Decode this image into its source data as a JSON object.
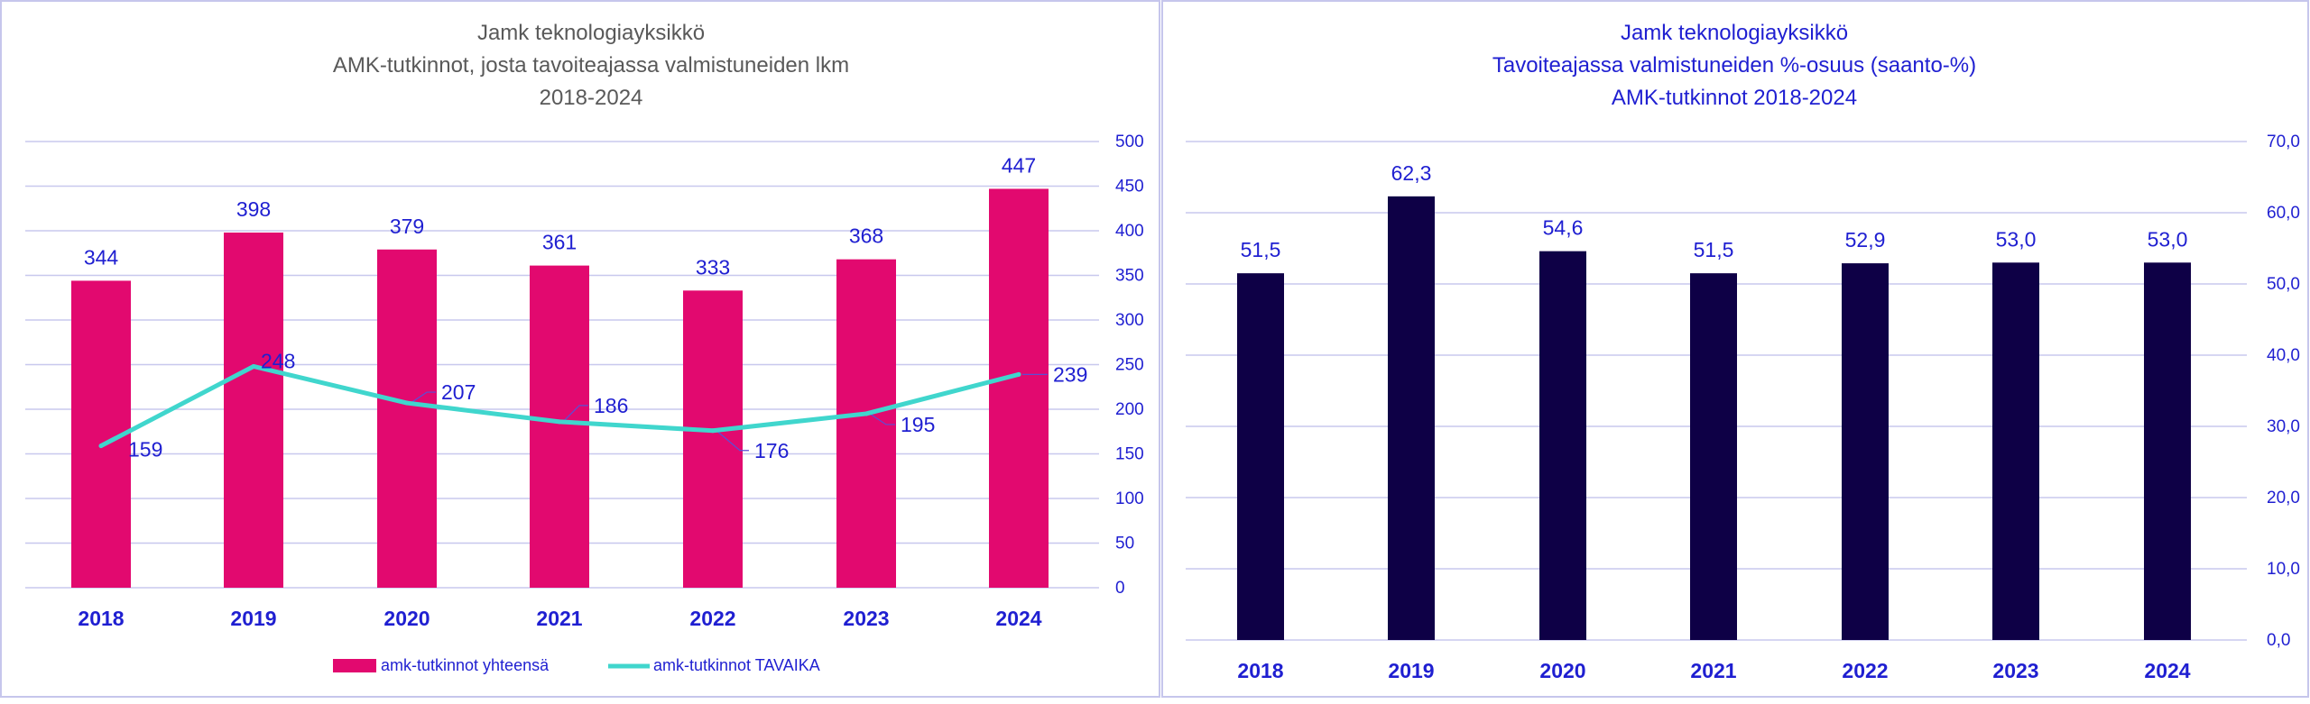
{
  "colors": {
    "panel_border": "#c6c6ec",
    "grid": "#c8c8ee",
    "left_title": "#595959",
    "right_title": "#1f1fd1",
    "axis_text": "#1f1fd1",
    "bar_magenta": "#e2096f",
    "line_teal": "#40d6cd",
    "bar_navy": "#0e0046",
    "leader": "#5a4fd6"
  },
  "chart_data": [
    {
      "type": "bar+line",
      "title_lines": [
        "Jamk teknologiayksikkö",
        "AMK-tutkinnot, josta tavoiteajassa valmistuneiden lkm",
        "2018-2024"
      ],
      "categories": [
        "2018",
        "2019",
        "2020",
        "2021",
        "2022",
        "2023",
        "2024"
      ],
      "series": [
        {
          "name": "amk-tutkinnot yhteensä",
          "kind": "bar",
          "values": [
            344,
            398,
            379,
            361,
            333,
            368,
            447
          ],
          "labels": [
            "344",
            "398",
            "379",
            "361",
            "333",
            "368",
            "447"
          ]
        },
        {
          "name": "amk-tutkinnot TAVAIKA",
          "kind": "line",
          "values": [
            159,
            248,
            207,
            186,
            176,
            195,
            239
          ],
          "labels": [
            "159",
            "248",
            "207",
            "186",
            "176",
            "195",
            "239"
          ]
        }
      ],
      "ylim": [
        0,
        500
      ],
      "yticks": [
        0,
        50,
        100,
        150,
        200,
        250,
        300,
        350,
        400,
        450,
        500
      ],
      "ytick_labels": [
        "0",
        "50",
        "100",
        "150",
        "200",
        "250",
        "300",
        "350",
        "400",
        "450",
        "500"
      ],
      "y_axis_side": "right",
      "grid": true,
      "legend_position": "bottom-center"
    },
    {
      "type": "bar",
      "title_lines": [
        "Jamk teknologiayksikkö",
        "Tavoiteajassa valmistuneiden %-osuus (saanto-%)",
        "AMK-tutkinnot 2018-2024"
      ],
      "categories": [
        "2018",
        "2019",
        "2020",
        "2021",
        "2022",
        "2023",
        "2024"
      ],
      "values": [
        51.5,
        62.3,
        54.6,
        51.5,
        52.9,
        53.0,
        53.0
      ],
      "labels": [
        "51,5",
        "62,3",
        "54,6",
        "51,5",
        "52,9",
        "53,0",
        "53,0"
      ],
      "ylim": [
        0,
        70
      ],
      "yticks": [
        0,
        10,
        20,
        30,
        40,
        50,
        60,
        70
      ],
      "ytick_labels": [
        "0,0",
        "10,0",
        "20,0",
        "30,0",
        "40,0",
        "50,0",
        "60,0",
        "70,0"
      ],
      "y_axis_side": "right",
      "grid": true
    }
  ]
}
